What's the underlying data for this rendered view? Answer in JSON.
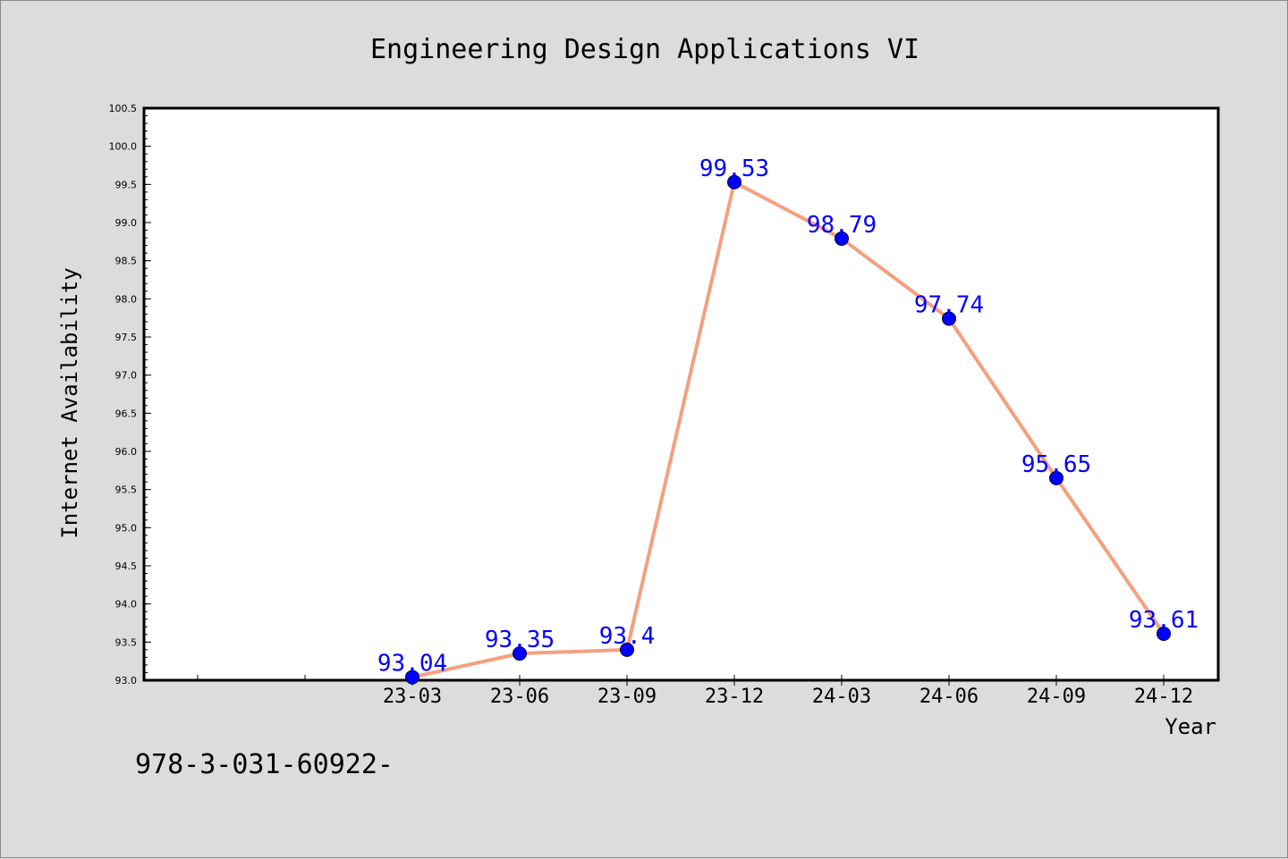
{
  "footer": {
    "text": "978-3-031-60922-"
  },
  "colors": {
    "background": "#dcdcdc",
    "plot_background": "#ffffff",
    "line": "#f4a07e",
    "marker": "#0000ff",
    "data_label": "#0000ff"
  },
  "chart_data": {
    "type": "line",
    "title": "Engineering Design Applications VI",
    "xlabel": "Year",
    "ylabel": "Internet Availability",
    "categories": [
      "23-03",
      "23-06",
      "23-09",
      "23-12",
      "24-03",
      "24-06",
      "24-09",
      "24-12"
    ],
    "series": [
      {
        "values": [
          93.04,
          93.35,
          93.4,
          99.53,
          98.79,
          97.74,
          95.65,
          93.61
        ],
        "data_labels": [
          "93.04",
          "93.35",
          "93.4",
          "99.53",
          "98.79",
          "97.74",
          "95.65",
          "93.61"
        ]
      }
    ],
    "ylim": [
      93.0,
      100.5
    ],
    "yticks": [
      "93.0",
      "93.5",
      "94.0",
      "94.5",
      "95.0",
      "95.5",
      "96.0",
      "96.5",
      "97.0",
      "97.5",
      "98.0",
      "98.5",
      "99.0",
      "99.5",
      "100.0",
      "100.5"
    ],
    "grid": false,
    "legend": "none"
  }
}
